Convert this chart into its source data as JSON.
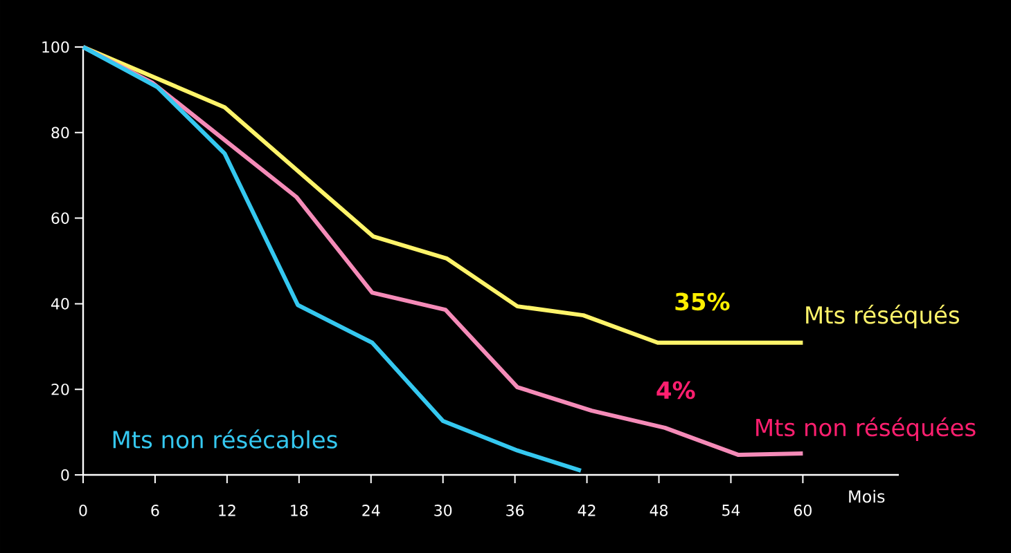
{
  "chart_data": {
    "type": "line",
    "xlabel": "Mois",
    "xlim": [
      0,
      68
    ],
    "ylim": [
      0,
      100
    ],
    "xticks": [
      0,
      6,
      12,
      18,
      24,
      30,
      36,
      42,
      48,
      54,
      60
    ],
    "yticks": [
      0,
      20,
      40,
      60,
      80,
      100
    ],
    "grid": false,
    "legend": false,
    "marker": "none",
    "line_style": "solid",
    "annotations": [
      "35%",
      "4%"
    ],
    "series": [
      {
        "name": "Mts réséqués",
        "color": "#fff46a",
        "x": [
          0,
          11.8,
          24.2,
          30.3,
          36.2,
          41.7,
          47.9,
          60
        ],
        "values": [
          100,
          85.9,
          55.7,
          50.6,
          39.4,
          37.3,
          30.9,
          30.9
        ]
      },
      {
        "name": "Mts non réséquées",
        "color": "#f58bb8",
        "x": [
          0,
          5.8,
          17.8,
          24.1,
          30.2,
          36.2,
          42.4,
          48.5,
          54.6,
          60
        ],
        "values": [
          100,
          91.6,
          64.9,
          42.6,
          38.6,
          20.5,
          15.0,
          11.0,
          4.7,
          5.0
        ]
      },
      {
        "name": "Mts non résécables",
        "color": "#35c8f0",
        "x": [
          0,
          6.2,
          11.8,
          17.9,
          24.1,
          30,
          36.2,
          41.5
        ],
        "values": [
          100,
          90.6,
          75.1,
          39.7,
          30.9,
          12.6,
          5.7,
          1.0
        ]
      }
    ]
  }
}
